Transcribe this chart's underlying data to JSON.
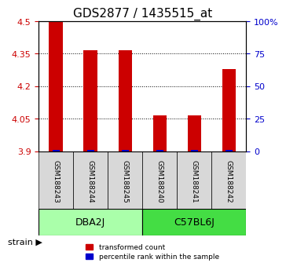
{
  "title": "GDS2877 / 1435515_at",
  "samples": [
    "GSM188243",
    "GSM188244",
    "GSM188245",
    "GSM188240",
    "GSM188241",
    "GSM188242"
  ],
  "groups": [
    {
      "name": "DBA2J",
      "indices": [
        0,
        1,
        2
      ],
      "color": "#aaffaa"
    },
    {
      "name": "C57BL6J",
      "indices": [
        3,
        4,
        5
      ],
      "color": "#44dd44"
    }
  ],
  "transformed_counts": [
    4.5,
    4.365,
    4.365,
    4.065,
    4.065,
    4.28
  ],
  "percentile_ranks": [
    0.01,
    0.01,
    0.01,
    0.01,
    0.01,
    0.01
  ],
  "y_min": 3.9,
  "y_max": 4.5,
  "y_ticks": [
    3.9,
    4.05,
    4.2,
    4.35,
    4.5
  ],
  "y_tick_labels": [
    "3.9",
    "4.05",
    "4.2",
    "4.35",
    "4.5"
  ],
  "y2_ticks": [
    0,
    25,
    50,
    75,
    100
  ],
  "y2_tick_labels": [
    "0",
    "25",
    "50",
    "75",
    "100%"
  ],
  "bar_color": "#cc0000",
  "percentile_color": "#0000cc",
  "bar_width": 0.4,
  "grid_color": "#000000",
  "grid_linestyle": "dotted",
  "label_red": "transformed count",
  "label_blue": "percentile rank within the sample",
  "strain_label": "strain",
  "group_label_fontsize": 9,
  "title_fontsize": 11
}
